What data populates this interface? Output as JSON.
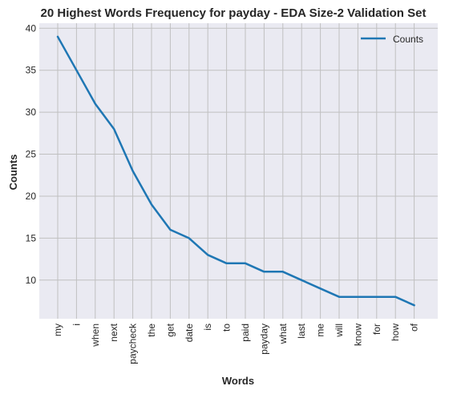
{
  "chart_data": {
    "type": "line",
    "title": "20 Highest Words Frequency for payday - EDA Size-2 Validation Set",
    "xlabel": "Words",
    "ylabel": "Counts",
    "categories": [
      "my",
      "i",
      "when",
      "next",
      "paycheck",
      "the",
      "get",
      "date",
      "is",
      "to",
      "paid",
      "payday",
      "what",
      "last",
      "me",
      "will",
      "know",
      "for",
      "how",
      "of"
    ],
    "series": [
      {
        "name": "Counts",
        "color": "#1f77b4",
        "values": [
          39,
          35,
          31,
          28,
          23,
          19,
          16,
          15,
          13,
          12,
          12,
          11,
          11,
          10,
          9,
          8,
          8,
          8,
          8,
          7
        ]
      }
    ],
    "ylim": [
      5.4,
      40.6
    ],
    "yticks": [
      10,
      15,
      20,
      25,
      30,
      35,
      40
    ],
    "grid": true,
    "legend": "top-right",
    "background": "#eaeaf2",
    "grid_color": "#c0c0c0"
  }
}
